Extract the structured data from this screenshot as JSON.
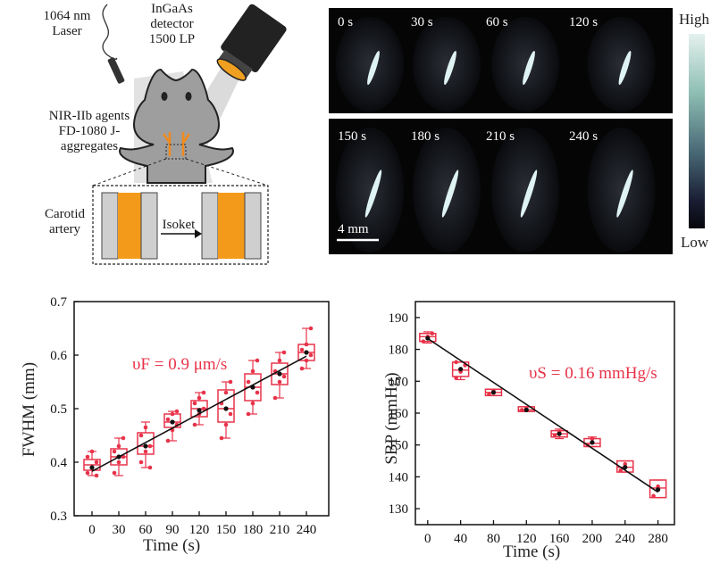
{
  "schematic": {
    "laser_label": "1064 nm Laser",
    "detector_label": "InGaAs detector 1500 LP",
    "agents_label": "NIR-IIb agents FD-1080 J-aggregates",
    "carotid_label": "Carotid artery",
    "isoket_label": "Isoket"
  },
  "imaging": {
    "row1_times": [
      "0 s",
      "30 s",
      "60 s",
      "120 s"
    ],
    "row2_times": [
      "150 s",
      "180 s",
      "210 s",
      "240 s"
    ],
    "scalebar_label": "4 mm",
    "colorbar_high": "High",
    "colorbar_low": "Low"
  },
  "chart_data": [
    {
      "type": "box",
      "xlabel": "Time (s)",
      "ylabel": "FWHM (mm)",
      "annotation": "υF = 0.9 μm/s",
      "x_ticks": [
        0,
        30,
        60,
        90,
        120,
        150,
        180,
        210,
        240
      ],
      "y_ticks": [
        0.3,
        0.4,
        0.5,
        0.6,
        0.7
      ],
      "xlim": [
        -20,
        265
      ],
      "ylim": [
        0.3,
        0.7
      ],
      "box_color": "#e8334a",
      "boxes": [
        {
          "x": 0,
          "q1": 0.385,
          "q3": 0.405,
          "median": 0.395,
          "mean": 0.39,
          "low": 0.375,
          "high": 0.42,
          "points": [
            0.38,
            0.39,
            0.4,
            0.41,
            0.42,
            0.375
          ]
        },
        {
          "x": 30,
          "q1": 0.395,
          "q3": 0.425,
          "median": 0.41,
          "mean": 0.41,
          "low": 0.375,
          "high": 0.445,
          "points": [
            0.38,
            0.4,
            0.41,
            0.42,
            0.43,
            0.445
          ]
        },
        {
          "x": 60,
          "q1": 0.415,
          "q3": 0.455,
          "median": 0.43,
          "mean": 0.43,
          "low": 0.39,
          "high": 0.475,
          "points": [
            0.4,
            0.42,
            0.43,
            0.45,
            0.465,
            0.39
          ]
        },
        {
          "x": 90,
          "q1": 0.465,
          "q3": 0.49,
          "median": 0.475,
          "mean": 0.475,
          "low": 0.44,
          "high": 0.495,
          "points": [
            0.44,
            0.46,
            0.47,
            0.48,
            0.49,
            0.495
          ]
        },
        {
          "x": 120,
          "q1": 0.485,
          "q3": 0.515,
          "median": 0.5,
          "mean": 0.497,
          "low": 0.47,
          "high": 0.53,
          "points": [
            0.47,
            0.49,
            0.5,
            0.51,
            0.52,
            0.53
          ]
        },
        {
          "x": 150,
          "q1": 0.475,
          "q3": 0.535,
          "median": 0.5,
          "mean": 0.5,
          "low": 0.445,
          "high": 0.55,
          "points": [
            0.445,
            0.47,
            0.49,
            0.51,
            0.53,
            0.55
          ]
        },
        {
          "x": 180,
          "q1": 0.515,
          "q3": 0.565,
          "median": 0.54,
          "mean": 0.54,
          "low": 0.49,
          "high": 0.59,
          "points": [
            0.49,
            0.51,
            0.53,
            0.55,
            0.57,
            0.59
          ]
        },
        {
          "x": 210,
          "q1": 0.545,
          "q3": 0.585,
          "median": 0.565,
          "mean": 0.565,
          "low": 0.52,
          "high": 0.605,
          "points": [
            0.52,
            0.55,
            0.56,
            0.57,
            0.59,
            0.605
          ]
        },
        {
          "x": 240,
          "q1": 0.59,
          "q3": 0.62,
          "median": 0.605,
          "mean": 0.605,
          "low": 0.575,
          "high": 0.65,
          "points": [
            0.575,
            0.59,
            0.6,
            0.61,
            0.62,
            0.65
          ]
        }
      ],
      "fit_line": {
        "x": [
          0,
          240
        ],
        "y": [
          0.383,
          0.598
        ]
      }
    },
    {
      "type": "box",
      "xlabel": "Time (s)",
      "ylabel": "SBP (mmHg)",
      "annotation": "υS = 0.16 mmHg/s",
      "x_ticks": [
        0,
        40,
        80,
        120,
        160,
        200,
        240,
        280
      ],
      "y_ticks": [
        130,
        140,
        150,
        160,
        170,
        180,
        190
      ],
      "xlim": [
        -15,
        300
      ],
      "ylim": [
        125,
        195
      ],
      "box_color": "#e8334a",
      "boxes": [
        {
          "x": 0,
          "q1": 182.5,
          "q3": 185,
          "median": 184,
          "mean": 183.5,
          "low": 182,
          "high": 185.5,
          "points": [
            182.5,
            184,
            185
          ]
        },
        {
          "x": 40,
          "q1": 171.5,
          "q3": 176,
          "median": 173.5,
          "mean": 173.8,
          "low": 170.5,
          "high": 176,
          "points": [
            171,
            173,
            175,
            176
          ]
        },
        {
          "x": 80,
          "q1": 165.5,
          "q3": 167.5,
          "median": 166.5,
          "mean": 166.5,
          "low": 165.5,
          "high": 167.5,
          "points": [
            166,
            167
          ]
        },
        {
          "x": 120,
          "q1": 160.5,
          "q3": 162,
          "median": 161,
          "mean": 161,
          "low": 160.5,
          "high": 162,
          "points": [
            161,
            161.5
          ]
        },
        {
          "x": 160,
          "q1": 152.5,
          "q3": 154.5,
          "median": 153.5,
          "mean": 153.5,
          "low": 152,
          "high": 155,
          "points": [
            153,
            154
          ]
        },
        {
          "x": 200,
          "q1": 149.5,
          "q3": 152,
          "median": 150.5,
          "mean": 150.8,
          "low": 149.5,
          "high": 152.5,
          "points": [
            150,
            152
          ]
        },
        {
          "x": 240,
          "q1": 141.5,
          "q3": 145,
          "median": 143,
          "mean": 143,
          "low": 141.5,
          "high": 145,
          "points": [
            142,
            144
          ]
        },
        {
          "x": 280,
          "q1": 133.5,
          "q3": 139,
          "median": 136.5,
          "mean": 136,
          "low": 133.5,
          "high": 139,
          "points": [
            134,
            137
          ]
        }
      ],
      "fit_line": {
        "x": [
          0,
          280
        ],
        "y": [
          183.4,
          135.2
        ]
      }
    }
  ]
}
